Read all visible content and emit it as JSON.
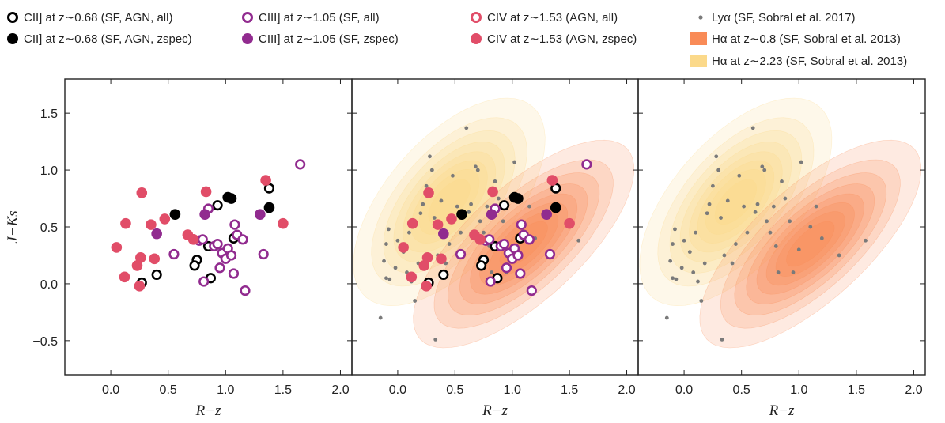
{
  "chart_data": {
    "type": "scatter",
    "xlabel": "R−z",
    "ylabel": "J−Ks",
    "xlim": [
      -0.4,
      2.1
    ],
    "ylim": [
      -0.8,
      1.8
    ],
    "xticks": [
      "0.0",
      "0.5",
      "1.0",
      "1.5",
      "2.0"
    ],
    "xtick_values": [
      0,
      0.5,
      1,
      1.5,
      2
    ],
    "yticks": [
      "−0.5",
      "0.0",
      "0.5",
      "1.0",
      "1.5"
    ],
    "ytick_values": [
      -0.5,
      0,
      0.5,
      1,
      1.5
    ],
    "colors": {
      "cii": "#000000",
      "ciii": "#912b8f",
      "civ": "#e14d68",
      "lya": "#7a7a7a",
      "ha08": "#f98b57",
      "ha223": "#fbd98a"
    },
    "legend": [
      {
        "key": "cii_all",
        "label": "CII] at z∼0.68 (SF, AGN, all)",
        "marker": "open",
        "color": "#000000"
      },
      {
        "key": "cii_zspec",
        "label": "CII] at z∼0.68 (SF, AGN, zspec)",
        "marker": "filled",
        "color": "#000000"
      },
      {
        "key": "ciii_all",
        "label": "CIII] at z∼1.05 (SF, all)",
        "marker": "open",
        "color": "#912b8f"
      },
      {
        "key": "ciii_zspec",
        "label": "CIII] at z∼1.05 (SF, zspec)",
        "marker": "filled",
        "color": "#912b8f"
      },
      {
        "key": "civ_all",
        "label": "CIV at z∼1.53 (AGN, all)",
        "marker": "open",
        "color": "#e14d68"
      },
      {
        "key": "civ_zspec",
        "label": "CIV at z∼1.53 (AGN, zspec)",
        "marker": "filled",
        "color": "#e14d68"
      },
      {
        "key": "lya",
        "label": "Lyα (SF, Sobral et al. 2017)",
        "marker": "dot",
        "color": "#7a7a7a"
      },
      {
        "key": "ha08",
        "label": "Hα at z∼0.8 (SF, Sobral et al. 2013)",
        "marker": "square",
        "color": "#f98b57"
      },
      {
        "key": "ha223",
        "label": "Hα at z∼2.23 (SF, Sobral et al. 2013)",
        "marker": "square",
        "color": "#fbd98a"
      }
    ],
    "panels": [
      {
        "name": "left",
        "series": [
          "cii_all",
          "cii_zspec",
          "ciii_all",
          "ciii_zspec",
          "civ_all",
          "civ_zspec"
        ],
        "contours": []
      },
      {
        "name": "middle",
        "series": [
          "lya",
          "cii_all",
          "cii_zspec",
          "ciii_all",
          "ciii_zspec",
          "civ_all",
          "civ_zspec"
        ],
        "contours": [
          "ha223",
          "ha08"
        ]
      },
      {
        "name": "right",
        "series": [
          "lya"
        ],
        "contours": [
          "ha223",
          "ha08"
        ]
      }
    ],
    "series": {
      "cii_all": {
        "marker": "open",
        "color": "#000000",
        "points": [
          [
            0.27,
            0.01
          ],
          [
            0.4,
            0.08
          ],
          [
            0.75,
            0.21
          ],
          [
            0.73,
            0.16
          ],
          [
            0.85,
            0.33
          ],
          [
            0.87,
            0.05
          ],
          [
            0.93,
            0.69
          ],
          [
            1.07,
            0.4
          ],
          [
            1.38,
            0.84
          ]
        ]
      },
      "cii_zspec": {
        "marker": "filled",
        "color": "#000000",
        "points": [
          [
            0.56,
            0.61
          ],
          [
            1.02,
            0.76
          ],
          [
            1.05,
            0.75
          ],
          [
            1.38,
            0.67
          ]
        ]
      },
      "ciii_all": {
        "marker": "open",
        "color": "#912b8f",
        "points": [
          [
            0.55,
            0.26
          ],
          [
            0.77,
            0.38
          ],
          [
            0.8,
            0.39
          ],
          [
            0.81,
            0.02
          ],
          [
            0.85,
            0.66
          ],
          [
            0.9,
            0.33
          ],
          [
            0.93,
            0.35
          ],
          [
            0.95,
            0.14
          ],
          [
            0.97,
            0.27
          ],
          [
            1.0,
            0.22
          ],
          [
            1.02,
            0.31
          ],
          [
            1.05,
            0.25
          ],
          [
            1.07,
            0.09
          ],
          [
            1.08,
            0.52
          ],
          [
            1.1,
            0.43
          ],
          [
            1.15,
            0.39
          ],
          [
            1.17,
            -0.06
          ],
          [
            1.3,
            0.61
          ],
          [
            1.33,
            0.26
          ],
          [
            1.65,
            1.05
          ]
        ]
      },
      "ciii_zspec": {
        "marker": "filled",
        "color": "#912b8f",
        "points": [
          [
            0.4,
            0.44
          ],
          [
            0.82,
            0.61
          ],
          [
            1.3,
            0.61
          ]
        ]
      },
      "civ_all": {
        "marker": "open",
        "color": "#e14d68",
        "points": []
      },
      "civ_zspec": {
        "marker": "filled",
        "color": "#e14d68",
        "points": [
          [
            0.05,
            0.32
          ],
          [
            0.12,
            0.06
          ],
          [
            0.13,
            0.53
          ],
          [
            0.23,
            0.16
          ],
          [
            0.25,
            -0.02
          ],
          [
            0.26,
            0.23
          ],
          [
            0.27,
            0.8
          ],
          [
            0.35,
            0.52
          ],
          [
            0.38,
            0.22
          ],
          [
            0.47,
            0.57
          ],
          [
            0.67,
            0.43
          ],
          [
            0.72,
            0.39
          ],
          [
            0.83,
            0.81
          ],
          [
            1.35,
            0.91
          ],
          [
            1.5,
            0.53
          ]
        ]
      },
      "lya": {
        "marker": "dot",
        "color": "#7a7a7a",
        "points": [
          [
            -0.15,
            -0.3
          ],
          [
            -0.1,
            0.05
          ],
          [
            -0.07,
            0.04
          ],
          [
            -0.12,
            0.2
          ],
          [
            -0.1,
            0.35
          ],
          [
            -0.08,
            0.48
          ],
          [
            -0.02,
            0.14
          ],
          [
            0.0,
            0.38
          ],
          [
            0.05,
            0.28
          ],
          [
            0.08,
            0.1
          ],
          [
            0.1,
            0.45
          ],
          [
            0.12,
            0.02
          ],
          [
            0.15,
            -0.15
          ],
          [
            0.18,
            0.18
          ],
          [
            0.2,
            0.62
          ],
          [
            0.22,
            0.7
          ],
          [
            0.25,
            0.86
          ],
          [
            0.28,
            1.12
          ],
          [
            0.3,
            1.0
          ],
          [
            0.32,
            0.58
          ],
          [
            0.33,
            -0.49
          ],
          [
            0.35,
            0.25
          ],
          [
            0.38,
            0.73
          ],
          [
            0.42,
            0.18
          ],
          [
            0.45,
            0.35
          ],
          [
            0.48,
            0.95
          ],
          [
            0.52,
            0.68
          ],
          [
            0.55,
            0.45
          ],
          [
            0.6,
            1.37
          ],
          [
            0.62,
            0.63
          ],
          [
            0.64,
            0.7
          ],
          [
            0.68,
            1.03
          ],
          [
            0.7,
            1.0
          ],
          [
            0.72,
            0.55
          ],
          [
            0.75,
            0.45
          ],
          [
            0.78,
            0.68
          ],
          [
            0.8,
            0.33
          ],
          [
            0.82,
            0.1
          ],
          [
            0.85,
            0.9
          ],
          [
            0.88,
            0.75
          ],
          [
            0.92,
            0.55
          ],
          [
            0.95,
            0.1
          ],
          [
            1.0,
            0.3
          ],
          [
            1.02,
            1.07
          ],
          [
            1.1,
            0.5
          ],
          [
            1.15,
            0.68
          ],
          [
            1.2,
            0.4
          ],
          [
            1.35,
            0.25
          ],
          [
            1.58,
            0.38
          ]
        ]
      }
    },
    "contours": {
      "ha08": {
        "color": "#f98b57",
        "center": [
          1.1,
          0.35
        ],
        "sx": 0.38,
        "sy": 0.36,
        "rho": 0.72,
        "peak": 0.85
      },
      "ha223": {
        "color": "#fbd98a",
        "center": [
          0.45,
          0.72
        ],
        "sx": 0.33,
        "sy": 0.36,
        "rho": 0.6,
        "peak": 0.95
      }
    }
  }
}
